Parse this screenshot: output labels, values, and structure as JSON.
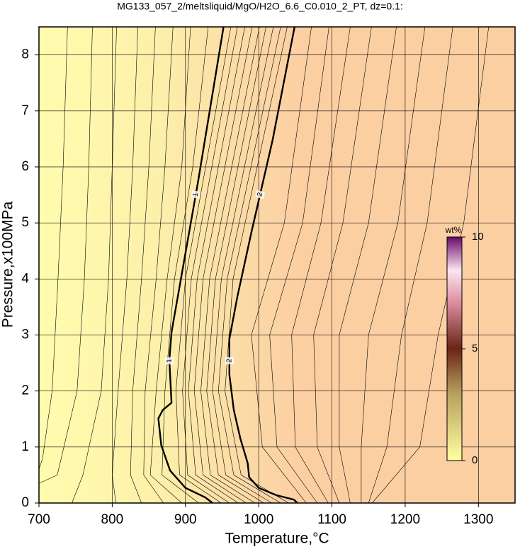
{
  "chart_data": {
    "type": "contour",
    "title": "MG133_057_2/meltsliquid/MgO/H2O_6.6_C0.010_2_PT, dz=0.1:",
    "xlabel": "Temperature,°C",
    "ylabel": "Pressure,x100MPa",
    "xlim": [
      700,
      1350
    ],
    "ylim": [
      0,
      8.5
    ],
    "xticks": [
      700,
      800,
      900,
      1000,
      1100,
      1200,
      1300
    ],
    "yticks": [
      0,
      1,
      2,
      3,
      4,
      5,
      6,
      7,
      8
    ],
    "grid": true,
    "contours": [
      {
        "level": 0.2,
        "x": [
          739,
          733,
          726,
          718,
          705,
          700
        ],
        "y": [
          8.5,
          6,
          4,
          2,
          0.8,
          0.6
        ]
      },
      {
        "level": 0.3,
        "x": [
          773,
          768,
          762,
          752,
          725,
          700
        ],
        "y": [
          8.5,
          6,
          4,
          2,
          0.5,
          0.35
        ]
      },
      {
        "level": 0.4,
        "x": [
          806,
          800,
          795,
          785,
          760,
          745
        ],
        "y": [
          8.5,
          6,
          4,
          2,
          0.5,
          0
        ]
      },
      {
        "level": 0.5,
        "x": [
          835,
          828,
          820,
          808,
          800,
          805
        ],
        "y": [
          8.5,
          6,
          4,
          2,
          0.5,
          0
        ]
      },
      {
        "level": 0.6,
        "x": [
          859,
          850,
          840,
          828,
          825,
          840
        ],
        "y": [
          8.5,
          6,
          4,
          2,
          0.5,
          0
        ]
      },
      {
        "level": 0.7,
        "x": [
          883,
          872,
          860,
          845,
          843,
          870
        ],
        "y": [
          8.5,
          6,
          4,
          2,
          0.5,
          0
        ]
      },
      {
        "level": 0.8,
        "x": [
          907,
          895,
          875,
          860,
          852,
          895
        ],
        "y": [
          8.5,
          6,
          4,
          2,
          0.5,
          0
        ]
      },
      {
        "level": 0.9,
        "x": [
          931,
          910,
          885,
          872,
          868,
          918
        ],
        "y": [
          8.5,
          6,
          4,
          2,
          0.5,
          0
        ]
      },
      {
        "level": 1,
        "bold": true,
        "x": [
          952,
          917,
          893,
          881,
          878,
          881,
          869,
          863,
          867,
          879,
          900,
          927,
          937
        ],
        "y": [
          8.5,
          5.72,
          3.94,
          3.05,
          2.55,
          1.79,
          1.66,
          1.51,
          1.03,
          0.58,
          0.27,
          0.1,
          0
        ]
      },
      {
        "level": 1.1,
        "x": [
          962,
          900,
          887,
          892,
          949
        ],
        "y": [
          8.5,
          4,
          2,
          0.5,
          0
        ]
      },
      {
        "level": 1.2,
        "x": [
          971,
          908,
          896,
          903,
          960
        ],
        "y": [
          8.5,
          4,
          2,
          0.5,
          0
        ]
      },
      {
        "level": 1.3,
        "x": [
          981,
          916,
          904,
          914,
          972
        ],
        "y": [
          8.5,
          4,
          2,
          0.5,
          0
        ]
      },
      {
        "level": 1.4,
        "x": [
          991,
          924,
          912,
          924,
          983
        ],
        "y": [
          8.5,
          4,
          2,
          0.5,
          0
        ]
      },
      {
        "level": 1.5,
        "x": [
          1001,
          933,
          921,
          934,
          995
        ],
        "y": [
          8.5,
          4,
          2,
          0.5,
          0
        ]
      },
      {
        "level": 1.6,
        "x": [
          1010,
          941,
          929,
          945,
          1007
        ],
        "y": [
          8.5,
          4,
          2,
          0.5,
          0
        ]
      },
      {
        "level": 1.7,
        "x": [
          1020,
          949,
          937,
          955,
          1018
        ],
        "y": [
          8.5,
          4,
          2,
          0.5,
          0
        ]
      },
      {
        "level": 1.8,
        "x": [
          1030,
          957,
          945,
          966,
          1030
        ],
        "y": [
          8.5,
          4,
          2,
          0.5,
          0
        ]
      },
      {
        "level": 1.9,
        "x": [
          1039,
          965,
          954,
          976,
          1041
        ],
        "y": [
          8.5,
          4,
          2,
          0.5,
          0
        ]
      },
      {
        "level": 2,
        "bold": true,
        "x": [
          1049,
          1019,
          990,
          971,
          960,
          960,
          966,
          975,
          985,
          987,
          1000,
          1024,
          1048,
          1053
        ],
        "y": [
          8.5,
          6.48,
          4.83,
          3.69,
          2.93,
          2.29,
          1.66,
          1.15,
          0.71,
          0.46,
          0.27,
          0.14,
          0.06,
          0
        ]
      },
      {
        "level": 2.2,
        "x": [
          1072,
          1035,
          990,
          1005,
          1065
        ],
        "y": [
          8.5,
          5,
          3,
          1,
          0
        ]
      },
      {
        "level": 2.4,
        "x": [
          1096,
          1060,
          1015,
          1025,
          1080
        ],
        "y": [
          8.5,
          5,
          3,
          1,
          0
        ]
      },
      {
        "level": 2.6,
        "x": [
          1125,
          1085,
          1045,
          1050,
          1095
        ],
        "y": [
          8.5,
          5,
          3,
          1,
          0
        ]
      },
      {
        "level": 2.8,
        "x": [
          1154,
          1115,
          1075,
          1080,
          1110
        ],
        "y": [
          8.5,
          5,
          3,
          1,
          0
        ]
      },
      {
        "level": 3.0,
        "x": [
          1188,
          1150,
          1110,
          1110,
          1125
        ],
        "y": [
          8.5,
          5,
          3,
          1,
          0
        ]
      },
      {
        "level": 3.2,
        "x": [
          1227,
          1190,
          1150,
          1140,
          1140
        ],
        "y": [
          8.5,
          5,
          3,
          1,
          0
        ]
      },
      {
        "level": 3.4,
        "x": [
          1265,
          1230,
          1195,
          1175,
          1150
        ],
        "y": [
          8.5,
          5,
          3,
          1,
          0
        ]
      },
      {
        "level": 3.6,
        "x": [
          1314,
          1280,
          1245,
          1220,
          1155
        ],
        "y": [
          8.5,
          5,
          3,
          1,
          0
        ]
      }
    ],
    "colorbar": {
      "label": "wt%",
      "lim": [
        0,
        10
      ],
      "ticks": [
        0,
        5,
        10
      ]
    }
  }
}
